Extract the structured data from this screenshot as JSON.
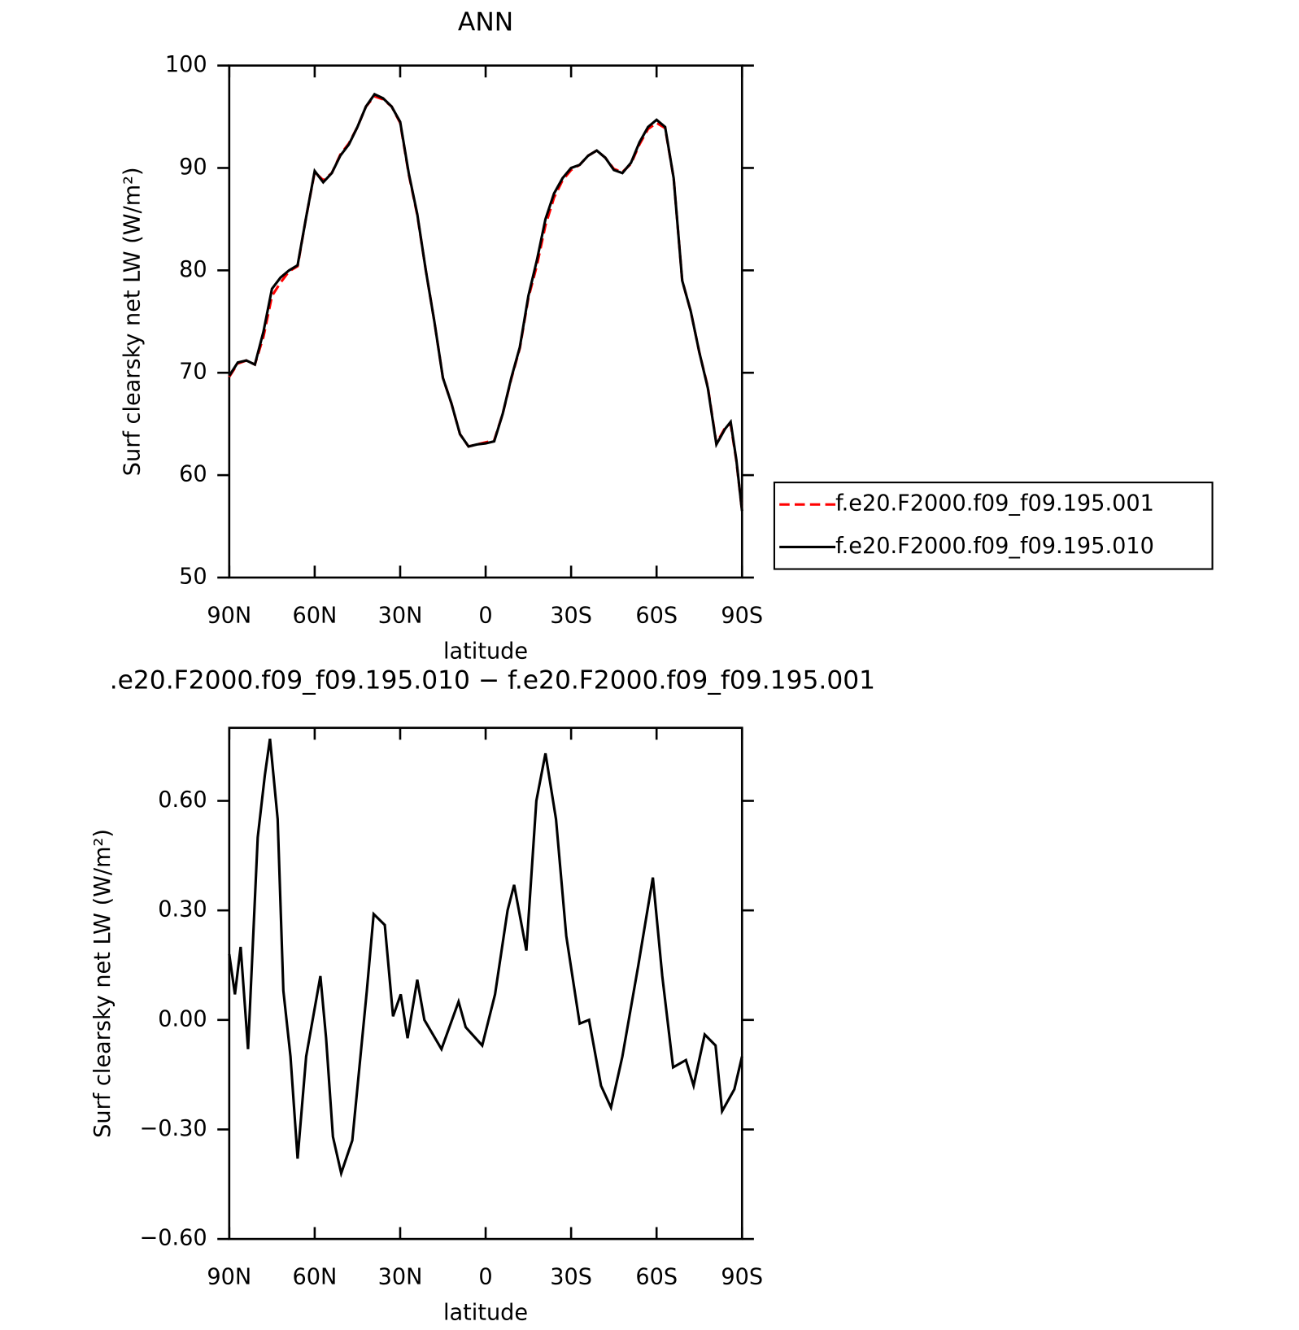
{
  "chart_data": [
    {
      "type": "line",
      "title": "ANN",
      "xlabel": "latitude",
      "ylabel": "Surf clearsky net LW (W/m²)",
      "x": [
        90,
        87,
        84,
        81,
        78,
        75,
        72,
        69,
        66,
        63,
        60,
        57,
        54,
        51,
        48,
        45,
        42,
        39,
        36,
        33,
        30,
        27,
        24,
        21,
        18,
        15,
        12,
        9,
        6,
        3,
        0,
        -3,
        -6,
        -9,
        -12,
        -15,
        -18,
        -21,
        -24,
        -27,
        -30,
        -33,
        -36,
        -39,
        -42,
        -45,
        -48,
        -51,
        -54,
        -57,
        -60,
        -63,
        -66,
        -69,
        -72,
        -75,
        -78,
        -81,
        -84,
        -86,
        -88,
        -90
      ],
      "series": [
        {
          "name": "f.e20.F2000.f09_f09.195.001",
          "color": "#ff0000",
          "dash": true,
          "values": [
            69.6,
            70.9,
            71.2,
            70.8,
            73.5,
            77.5,
            78.8,
            79.9,
            80.4,
            85.2,
            89.6,
            88.8,
            89.5,
            91.3,
            92.4,
            94.0,
            96.0,
            97.0,
            96.7,
            96.0,
            94.4,
            89.4,
            85.4,
            80.0,
            75.0,
            69.5,
            67.0,
            64.0,
            62.8,
            63.0,
            63.2,
            63.4,
            66.0,
            69.4,
            72.4,
            77.3,
            80.5,
            84.4,
            87.1,
            88.8,
            89.8,
            90.3,
            91.2,
            91.7,
            91.0,
            89.9,
            89.6,
            90.4,
            92.3,
            93.8,
            94.4,
            93.9,
            89.0,
            79.0,
            76.0,
            72.0,
            68.6,
            63.1,
            64.6,
            65.0,
            61.4,
            56.5
          ]
        },
        {
          "name": "f.e20.F2000.f09_f09.195.010",
          "color": "#000000",
          "dash": false,
          "values": [
            69.7,
            71.0,
            71.2,
            70.8,
            74.0,
            78.2,
            79.3,
            80.0,
            80.5,
            85.2,
            89.7,
            88.6,
            89.5,
            91.2,
            92.3,
            94.0,
            96.0,
            97.2,
            96.8,
            96.0,
            94.5,
            89.5,
            85.5,
            80.0,
            75.0,
            69.5,
            67.0,
            64.0,
            62.8,
            63.0,
            63.1,
            63.3,
            66.0,
            69.5,
            72.5,
            77.5,
            81.0,
            85.0,
            87.5,
            89.0,
            90.0,
            90.3,
            91.2,
            91.7,
            91.0,
            89.8,
            89.5,
            90.5,
            92.5,
            94.0,
            94.7,
            94.0,
            89.0,
            79.0,
            76.0,
            72.0,
            68.5,
            63.0,
            64.5,
            65.2,
            61.5,
            56.5
          ]
        }
      ],
      "xlim": [
        90,
        -90
      ],
      "xticks": [
        {
          "value": 90,
          "label": "90N"
        },
        {
          "value": 60,
          "label": "60N"
        },
        {
          "value": 30,
          "label": "30N"
        },
        0,
        {
          "value": -30,
          "label": "30S"
        },
        {
          "value": -60,
          "label": "60S"
        },
        {
          "value": -90,
          "label": "90S"
        }
      ],
      "ylim": [
        50,
        100
      ],
      "yticks": [
        50,
        60,
        70,
        80,
        90,
        100
      ],
      "legend": "right"
    },
    {
      "type": "line",
      "title": ".e20.F2000.f09_f09.195.010 − f.e20.F2000.f09_f09.195.001",
      "xlabel": "latitude",
      "ylabel": "Surf clearsky net LW (W/m²)",
      "x": [
        90,
        88,
        86,
        83.4,
        80,
        77.5,
        75.7,
        73,
        71,
        68.5,
        66,
        63,
        58,
        56,
        53.6,
        50.7,
        46.8,
        41.7,
        39.3,
        35.4,
        32.5,
        29.8,
        27.4,
        24,
        21.5,
        15.5,
        9.5,
        7,
        1.2,
        -3.3,
        -7.7,
        -10,
        -14.3,
        -17.8,
        -21,
        -24.7,
        -28.3,
        -33,
        -36.3,
        -40.5,
        -44,
        -48,
        -53.6,
        -58.7,
        -62,
        -65.8,
        -70.3,
        -73,
        -76.9,
        -80.7,
        -83,
        -87.3,
        -90
      ],
      "series": [
        {
          "name": "f.e20.F2000.f09_f09.195.010 − f.e20.F2000.f09_f09.195.001",
          "color": "#000000",
          "dash": false,
          "values": [
            0.18,
            0.07,
            0.2,
            -0.08,
            0.5,
            0.67,
            0.77,
            0.55,
            0.08,
            -0.1,
            -0.38,
            -0.1,
            0.12,
            -0.05,
            -0.32,
            -0.42,
            -0.33,
            0.08,
            0.29,
            0.26,
            0.01,
            0.07,
            -0.05,
            0.11,
            0.0,
            -0.08,
            0.05,
            -0.02,
            -0.07,
            0.07,
            0.3,
            0.37,
            0.19,
            0.6,
            0.73,
            0.55,
            0.23,
            -0.01,
            0.0,
            -0.18,
            -0.24,
            -0.1,
            0.15,
            0.39,
            0.12,
            -0.13,
            -0.11,
            -0.18,
            -0.04,
            -0.07,
            -0.25,
            -0.19,
            -0.1
          ]
        }
      ],
      "xlim": [
        90,
        -90
      ],
      "xticks": [
        {
          "value": 90,
          "label": "90N"
        },
        {
          "value": 60,
          "label": "60N"
        },
        {
          "value": 30,
          "label": "30N"
        },
        0,
        {
          "value": -30,
          "label": "30S"
        },
        {
          "value": -60,
          "label": "60S"
        },
        {
          "value": -90,
          "label": "90S"
        }
      ],
      "ylim": [
        -0.6,
        0.8
      ],
      "yticks": [
        {
          "value": -0.6,
          "label": "−0.60"
        },
        {
          "value": -0.3,
          "label": "−0.30"
        },
        {
          "value": 0,
          "label": "0.00"
        },
        {
          "value": 0.3,
          "label": "0.30"
        },
        {
          "value": 0.6,
          "label": "0.60"
        }
      ]
    }
  ]
}
